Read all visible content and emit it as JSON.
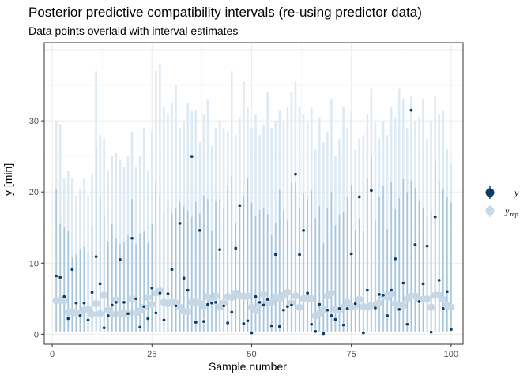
{
  "chart_data": {
    "type": "scatter",
    "title": "Posterior predictive compatibility intervals (re-using predictor data)",
    "subtitle": "Data points overlaid with interval estimates",
    "xlabel": "Sample number",
    "ylabel": "y [min]",
    "xlim": [
      -2,
      103
    ],
    "ylim": [
      -1.4,
      41
    ],
    "xticks": [
      0,
      25,
      50,
      75,
      100
    ],
    "yticks": [
      0,
      10,
      20,
      30
    ],
    "grid": true,
    "legend_position": "right",
    "legend": [
      {
        "label": "y",
        "color": "#0b3c68"
      },
      {
        "label": "y",
        "sub": "rep",
        "color": "#c6d7e6"
      }
    ],
    "colors": {
      "y": "#0b3c68",
      "yrep_point": "#c6d7e6",
      "inner_interval": "#a5c3d9",
      "outer_interval": "#deeaf3"
    },
    "series": [
      {
        "name": "y",
        "x": [
          1,
          2,
          3,
          4,
          5,
          6,
          7,
          8,
          9,
          10,
          11,
          12,
          13,
          14,
          15,
          16,
          17,
          18,
          19,
          20,
          21,
          22,
          23,
          24,
          25,
          26,
          27,
          28,
          29,
          30,
          31,
          32,
          33,
          34,
          35,
          36,
          37,
          38,
          39,
          40,
          41,
          42,
          43,
          44,
          45,
          46,
          47,
          48,
          49,
          50,
          51,
          52,
          53,
          54,
          55,
          56,
          57,
          58,
          59,
          60,
          61,
          62,
          63,
          64,
          65,
          66,
          67,
          68,
          69,
          70,
          71,
          72,
          73,
          74,
          75,
          76,
          77,
          78,
          79,
          80,
          81,
          82,
          83,
          84,
          85,
          86,
          87,
          88,
          89,
          90,
          91,
          92,
          93,
          94,
          95,
          96,
          97,
          98,
          99,
          100
        ],
        "values": [
          8.2,
          8.0,
          5.3,
          2.2,
          9.1,
          4.4,
          2.6,
          4.4,
          2.0,
          5.9,
          10.9,
          7.1,
          0.9,
          2.6,
          4.1,
          4.5,
          10.5,
          4.5,
          2.9,
          13.5,
          5.0,
          1.0,
          3.9,
          2.2,
          6.5,
          3.0,
          5.8,
          2.0,
          5.7,
          9.1,
          4.0,
          15.6,
          7.9,
          6.2,
          25.0,
          1.7,
          14.6,
          1.8,
          4.2,
          4.4,
          4.5,
          11.9,
          4.0,
          1.6,
          3.1,
          12.1,
          18.1,
          1.5,
          1.9,
          0.2,
          5.3,
          4.5,
          4.1,
          4.9,
          1.2,
          11.2,
          1.1,
          3.4,
          3.9,
          4.1,
          22.5,
          11.2,
          14.6,
          5.8,
          1.4,
          0.4,
          4.2,
          0.1,
          3.4,
          2.6,
          2.1,
          3.6,
          1.3,
          3.6,
          11.3,
          4.3,
          19.3,
          0.2,
          6.2,
          20.2,
          3.7,
          5.6,
          5.5,
          2.6,
          6.2,
          10.6,
          3.5,
          7.2,
          1.4,
          31.5,
          12.6,
          4.6,
          7.1,
          12.4,
          0.3,
          16.5,
          7.6,
          3.6,
          6.0,
          0.7
        ]
      },
      {
        "name": "y_rep",
        "x": [
          1,
          2,
          3,
          4,
          5,
          6,
          7,
          8,
          9,
          10,
          11,
          12,
          13,
          14,
          15,
          16,
          17,
          18,
          19,
          20,
          21,
          22,
          23,
          24,
          25,
          26,
          27,
          28,
          29,
          30,
          31,
          32,
          33,
          34,
          35,
          36,
          37,
          38,
          39,
          40,
          41,
          42,
          43,
          44,
          45,
          46,
          47,
          48,
          49,
          50,
          51,
          52,
          53,
          54,
          55,
          56,
          57,
          58,
          59,
          60,
          61,
          62,
          63,
          64,
          65,
          66,
          67,
          68,
          69,
          70,
          71,
          72,
          73,
          74,
          75,
          76,
          77,
          78,
          79,
          80,
          81,
          82,
          83,
          84,
          85,
          86,
          87,
          88,
          89,
          90,
          91,
          92,
          93,
          94,
          95,
          96,
          97,
          98,
          99,
          100
        ],
        "values": [
          4.7,
          4.8,
          4.7,
          3.1,
          3.2,
          3.0,
          3.0,
          3.4,
          3.5,
          2.8,
          4.3,
          2.9,
          5.5,
          3.4,
          2.8,
          4.8,
          2.9,
          2.9,
          3.0,
          5.0,
          3.0,
          3.3,
          3.8,
          5.2,
          4.2,
          5.8,
          6.1,
          4.5,
          4.3,
          4.5,
          4.4,
          3.8,
          3.2,
          3.2,
          4.5,
          4.5,
          4.4,
          4.0,
          5.3,
          4.6,
          5.4,
          3.8,
          4.4,
          5.3,
          5.2,
          5.8,
          5.4,
          5.3,
          5.4,
          3.8,
          3.3,
          4.2,
          5.6,
          4.5,
          4.5,
          5.3,
          5.0,
          5.5,
          5.9,
          4.4,
          5.4,
          3.8,
          5.0,
          5.1,
          5.0,
          2.6,
          2.9,
          3.5,
          5.4,
          5.8,
          3.5,
          3.4,
          3.8,
          4.5,
          3.9,
          4.0,
          4.9,
          3.9,
          3.8,
          4.1,
          4.0,
          4.4,
          5.4,
          5.2,
          5.7,
          4.3,
          4.0,
          4.0,
          5.0,
          5.4,
          5.4,
          4.9,
          4.9,
          5.0,
          3.8,
          5.5,
          5.5,
          4.9,
          4.1,
          3.8
        ]
      },
      {
        "name": "inner_upper",
        "x": [
          1,
          2,
          3,
          4,
          5,
          6,
          7,
          8,
          9,
          10,
          11,
          12,
          13,
          14,
          15,
          16,
          17,
          18,
          19,
          20,
          21,
          22,
          23,
          24,
          25,
          26,
          27,
          28,
          29,
          30,
          31,
          32,
          33,
          34,
          35,
          36,
          37,
          38,
          39,
          40,
          41,
          42,
          43,
          44,
          45,
          46,
          47,
          48,
          49,
          50,
          51,
          52,
          53,
          54,
          55,
          56,
          57,
          58,
          59,
          60,
          61,
          62,
          63,
          64,
          65,
          66,
          67,
          68,
          69,
          70,
          71,
          72,
          73,
          74,
          75,
          76,
          77,
          78,
          79,
          80,
          81,
          82,
          83,
          84,
          85,
          86,
          87,
          88,
          89,
          90,
          91,
          92,
          93,
          94,
          95,
          96,
          97,
          98,
          99,
          100
        ],
        "values": [
          20.5,
          15.5,
          15.0,
          14.5,
          10.8,
          11.2,
          12.0,
          12.3,
          11.5,
          15.3,
          26.3,
          19.2,
          16.8,
          13.0,
          15.5,
          13.5,
          12.7,
          13.0,
          14.0,
          19.0,
          12.7,
          14.2,
          14.5,
          12.8,
          15.5,
          21.3,
          19.6,
          16.9,
          18.6,
          17.0,
          17.8,
          18.6,
          18.0,
          17.4,
          16.5,
          18.6,
          17.0,
          19.5,
          19.0,
          14.6,
          18.8,
          19.0,
          17.8,
          21.0,
          22.3,
          15.7,
          18.2,
          19.5,
          22.0,
          18.5,
          16.6,
          17.5,
          17.8,
          16.9,
          14.0,
          15.7,
          20.3,
          17.4,
          16.2,
          21.5,
          21.3,
          17.7,
          19.8,
          19.0,
          20.2,
          16.3,
          18.0,
          12.8,
          17.8,
          20.0,
          15.3,
          16.8,
          17.1,
          19.2,
          21.0,
          14.7,
          16.3,
          14.6,
          22.0,
          24.9,
          16.0,
          19.3,
          20.9,
          14.8,
          21.4,
          17.6,
          19.1,
          21.8,
          20.0,
          21.6,
          20.6,
          18.8,
          17.7,
          16.5,
          17.3,
          24.3,
          21.4,
          20.4,
          19.2,
          18.5
        ]
      },
      {
        "name": "outer_upper",
        "x": [
          1,
          2,
          3,
          4,
          5,
          6,
          7,
          8,
          9,
          10,
          11,
          12,
          13,
          14,
          15,
          16,
          17,
          18,
          19,
          20,
          21,
          22,
          23,
          24,
          25,
          26,
          27,
          28,
          29,
          30,
          31,
          32,
          33,
          34,
          35,
          36,
          37,
          38,
          39,
          40,
          41,
          42,
          43,
          44,
          45,
          46,
          47,
          48,
          49,
          50,
          51,
          52,
          53,
          54,
          55,
          56,
          57,
          58,
          59,
          60,
          61,
          62,
          63,
          64,
          65,
          66,
          67,
          68,
          69,
          70,
          71,
          72,
          73,
          74,
          75,
          76,
          77,
          78,
          79,
          80,
          81,
          82,
          83,
          84,
          85,
          86,
          87,
          88,
          89,
          90,
          91,
          92,
          93,
          94,
          95,
          96,
          97,
          98,
          99,
          100
        ],
        "values": [
          30.0,
          29.5,
          22.0,
          23.0,
          22.0,
          19.5,
          20.5,
          22.0,
          19.5,
          22.5,
          37.0,
          28.0,
          27.5,
          23.0,
          25.0,
          25.5,
          24.5,
          23.5,
          25.0,
          28.5,
          23.5,
          25.0,
          29.0,
          23.0,
          28.5,
          37.0,
          38.0,
          32.0,
          31.0,
          32.5,
          35.0,
          29.0,
          30.0,
          32.5,
          31.5,
          31.5,
          27.0,
          31.0,
          33.0,
          26.5,
          29.0,
          30.0,
          29.0,
          28.5,
          37.0,
          28.0,
          30.5,
          35.5,
          32.0,
          29.0,
          31.0,
          28.0,
          29.5,
          34.0,
          29.0,
          30.0,
          31.5,
          30.0,
          32.0,
          34.0,
          35.5,
          32.0,
          31.0,
          30.0,
          32.0,
          26.0,
          30.5,
          27.0,
          28.5,
          33.0,
          25.0,
          27.5,
          32.0,
          29.0,
          31.5,
          26.0,
          27.5,
          28.0,
          31.0,
          34.5,
          30.0,
          27.5,
          30.0,
          28.0,
          32.0,
          30.5,
          34.5,
          33.0,
          29.0,
          33.5,
          30.0,
          30.5,
          33.0,
          27.5,
          30.0,
          33.5,
          31.0,
          31.5,
          26.0,
          24.0
        ]
      }
    ]
  }
}
